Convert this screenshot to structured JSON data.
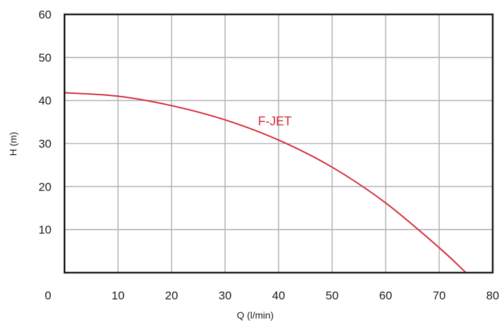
{
  "chart_data": {
    "type": "line",
    "xlabel": "Q (l/min)",
    "ylabel": "H (m)",
    "xlim": [
      0,
      80
    ],
    "ylim": [
      0,
      60
    ],
    "x_ticks": [
      0,
      10,
      20,
      30,
      40,
      50,
      60,
      70,
      80
    ],
    "y_ticks": [
      10,
      20,
      30,
      40,
      50,
      60
    ],
    "grid": true,
    "series": [
      {
        "name": "F-JET",
        "color": "#d42a38",
        "x": [
          0,
          10,
          20,
          30,
          40,
          50,
          60,
          70,
          75
        ],
        "y": [
          41.8,
          41.0,
          38.8,
          35.5,
          30.8,
          24.5,
          16.2,
          5.8,
          0
        ]
      }
    ]
  }
}
